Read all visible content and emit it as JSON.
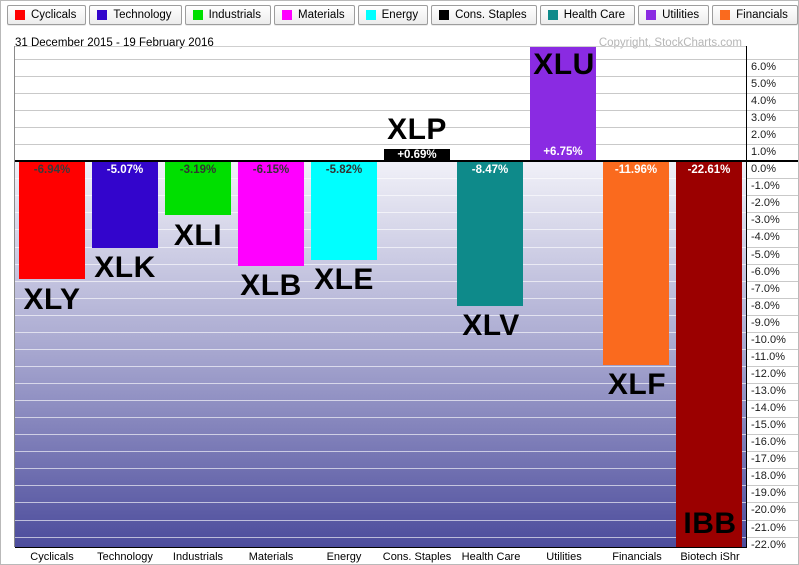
{
  "header": {
    "date_range": "31 December 2015 - 19 February 2016",
    "copyright": "Copyright, StockCharts.com"
  },
  "legend": {
    "items": [
      {
        "label": "Cyclicals",
        "color": "#FF0000"
      },
      {
        "label": "Technology",
        "color": "#3305CC"
      },
      {
        "label": "Industrials",
        "color": "#00DF00"
      },
      {
        "label": "Materials",
        "color": "#FF00FF"
      },
      {
        "label": "Energy",
        "color": "#00FFFF"
      },
      {
        "label": "Cons. Staples",
        "color": "#000000"
      },
      {
        "label": "Health Care",
        "color": "#0E8A8A"
      },
      {
        "label": "Utilities",
        "color": "#8A2BE2"
      },
      {
        "label": "Financials",
        "color": "#FA6A1E"
      },
      {
        "label": "Biotech iShr",
        "color": "#9B0000"
      }
    ]
  },
  "chart_data": {
    "type": "bar",
    "title": "31 December 2015 - 19 February 2016",
    "categories": [
      "Cyclicals",
      "Technology",
      "Industrials",
      "Materials",
      "Energy",
      "Cons. Staples",
      "Health Care",
      "Utilities",
      "Financials",
      "Biotech iShr"
    ],
    "tickers": [
      "XLY",
      "XLK",
      "XLI",
      "XLB",
      "XLE",
      "XLP",
      "XLV",
      "XLU",
      "XLF",
      "IBB"
    ],
    "values": [
      -6.94,
      -5.07,
      -3.19,
      -6.15,
      -5.82,
      0.69,
      -8.47,
      6.75,
      -11.96,
      -22.61
    ],
    "value_labels": [
      "-6.94%",
      "-5.07%",
      "-3.19%",
      "-6.15%",
      "-5.82%",
      "+0.69%",
      "-8.47%",
      "+6.75%",
      "-11.96%",
      "-22.61%"
    ],
    "bar_colors": [
      "#FF0000",
      "#3305CC",
      "#00DF00",
      "#FF00FF",
      "#00FFFF",
      "#000000",
      "#0E8A8A",
      "#8A2BE2",
      "#FA6A1E",
      "#9B0000"
    ],
    "value_label_colors": [
      "#3A3A3A",
      "#FFFFFF",
      "#333333",
      "#333333",
      "#333333",
      "#FFFFFF",
      "#FFFFFF",
      "#FFFFFF",
      "#FFFFFF",
      "#FFFFFF"
    ],
    "ticker_label_placement": [
      "below",
      "below",
      "below",
      "below",
      "below",
      "above",
      "below",
      "inside-top",
      "below",
      "inside-bottom"
    ],
    "ylim": [
      -22.61,
      6.75
    ],
    "grid": true,
    "legend_position": "top",
    "gradient_below_zero": {
      "top": "#F1F1F8",
      "mid": "#A6A6CF",
      "bottom": "#4C4C9C"
    },
    "y_ticks": [
      {
        "value": 6,
        "label": "6.0%"
      },
      {
        "value": 5,
        "label": "5.0%"
      },
      {
        "value": 4,
        "label": "4.0%"
      },
      {
        "value": 3,
        "label": "3.0%"
      },
      {
        "value": 2,
        "label": "2.0%"
      },
      {
        "value": 1,
        "label": "1.0%"
      },
      {
        "value": 0,
        "label": "0.0%"
      },
      {
        "value": -1,
        "label": "-1.0%"
      },
      {
        "value": -2,
        "label": "-2.0%"
      },
      {
        "value": -3,
        "label": "-3.0%"
      },
      {
        "value": -4,
        "label": "-4.0%"
      },
      {
        "value": -5,
        "label": "-5.0%"
      },
      {
        "value": -6,
        "label": "-6.0%"
      },
      {
        "value": -7,
        "label": "-7.0%"
      },
      {
        "value": -8,
        "label": "-8.0%"
      },
      {
        "value": -9,
        "label": "-9.0%"
      },
      {
        "value": -10,
        "label": "-10.0%"
      },
      {
        "value": -11,
        "label": "-11.0%"
      },
      {
        "value": -12,
        "label": "-12.0%"
      },
      {
        "value": -13,
        "label": "-13.0%"
      },
      {
        "value": -14,
        "label": "-14.0%"
      },
      {
        "value": -15,
        "label": "-15.0%"
      },
      {
        "value": -16,
        "label": "-16.0%"
      },
      {
        "value": -17,
        "label": "-17.0%"
      },
      {
        "value": -18,
        "label": "-18.0%"
      },
      {
        "value": -19,
        "label": "-19.0%"
      },
      {
        "value": -20,
        "label": "-20.0%"
      },
      {
        "value": -21,
        "label": "-21.0%"
      },
      {
        "value": -22,
        "label": "-22.0%"
      }
    ]
  }
}
